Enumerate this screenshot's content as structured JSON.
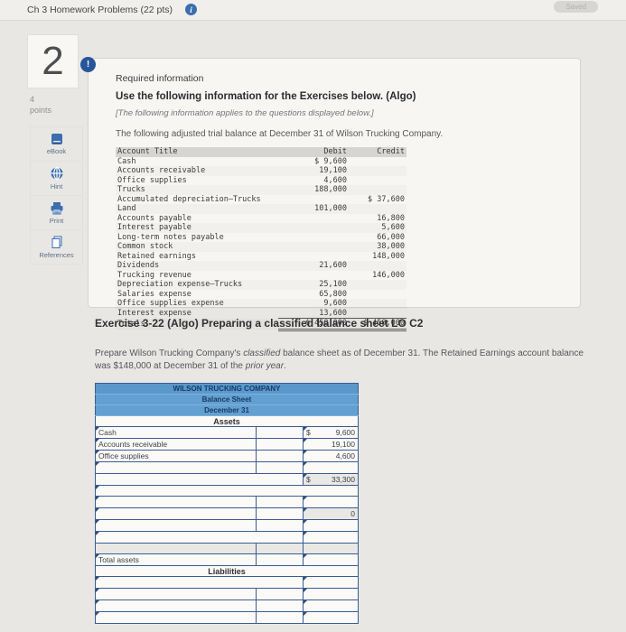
{
  "colors": {
    "accent_blue": "#3c6eae",
    "badge_navy": "#27559a",
    "bs_header_blue": "#63a0d2",
    "bs_border_navy": "#3c5d92",
    "calc_cell_bg": "#e9e8e5",
    "page_bg": "#e8e7e4"
  },
  "topbar": {
    "title": "Ch 3 Homework Problems (22 pts)",
    "info_icon_glyph": "i",
    "saved_label": "Saved"
  },
  "question": {
    "number": "2",
    "points_value": "4",
    "points_label": "points"
  },
  "sidebar": {
    "items": [
      {
        "label": "eBook",
        "icon": "ebook-icon"
      },
      {
        "label": "Hint",
        "icon": "hint-icon"
      },
      {
        "label": "Print",
        "icon": "print-icon"
      },
      {
        "label": "References",
        "icon": "references-icon"
      }
    ]
  },
  "required_info": {
    "badge_glyph": "!",
    "heading": "Required information",
    "subheading": "Use the following information for the Exercises below. (Algo)",
    "note": "[The following information applies to the questions displayed below.]",
    "intro": "The following adjusted trial balance at December 31 of Wilson Trucking Company."
  },
  "trial_balance": {
    "headers": {
      "account": "Account Title",
      "debit": "Debit",
      "credit": "Credit"
    },
    "rows": [
      {
        "account": "Cash",
        "debit": "$ 9,600",
        "credit": ""
      },
      {
        "account": "Accounts receivable",
        "debit": "19,100",
        "credit": ""
      },
      {
        "account": "Office supplies",
        "debit": "4,600",
        "credit": ""
      },
      {
        "account": "Trucks",
        "debit": "188,000",
        "credit": ""
      },
      {
        "account": "Accumulated depreciation–Trucks",
        "debit": "",
        "credit": "$ 37,600"
      },
      {
        "account": "Land",
        "debit": "101,000",
        "credit": ""
      },
      {
        "account": "Accounts payable",
        "debit": "",
        "credit": "16,800"
      },
      {
        "account": "Interest payable",
        "debit": "",
        "credit": "5,600"
      },
      {
        "account": "Long-term notes payable",
        "debit": "",
        "credit": "66,000"
      },
      {
        "account": "Common stock",
        "debit": "",
        "credit": "38,000"
      },
      {
        "account": "Retained earnings",
        "debit": "",
        "credit": "148,000"
      },
      {
        "account": "Dividends",
        "debit": "21,600",
        "credit": ""
      },
      {
        "account": "Trucking revenue",
        "debit": "",
        "credit": "146,000"
      },
      {
        "account": "Depreciation expense–Trucks",
        "debit": "25,100",
        "credit": ""
      },
      {
        "account": "Salaries expense",
        "debit": "65,800",
        "credit": ""
      },
      {
        "account": "Office supplies expense",
        "debit": "9,600",
        "credit": ""
      },
      {
        "account": "Interest expense",
        "debit": "13,600",
        "credit": ""
      },
      {
        "account": "Totals",
        "debit": "$ 458,000",
        "credit": "$ 458,000",
        "total": true
      }
    ]
  },
  "exercise": {
    "title": "Exercise 3-22 (Algo) Preparing a classified balance sheet LO C2",
    "body_parts": {
      "a": "Prepare Wilson Trucking Company's ",
      "b": "classified",
      "c": " balance sheet as of December 31. The Retained Earnings account balance was $148,000 at December 31 of the ",
      "d": "prior year",
      "e": "."
    }
  },
  "balance_sheet": {
    "title_rows": [
      "WILSON TRUCKING COMPANY",
      "Balance Sheet",
      "December 31"
    ],
    "rows": [
      {
        "type": "section",
        "label": "Assets"
      },
      {
        "type": "item",
        "label": "Cash",
        "dollar": "$",
        "amount": "9,600",
        "calc": false
      },
      {
        "type": "item",
        "label": "Accounts receivable",
        "dollar": "",
        "amount": "19,100",
        "calc": false
      },
      {
        "type": "item",
        "label": "Office supplies",
        "dollar": "",
        "amount": "4,600",
        "calc": false
      },
      {
        "type": "item",
        "label": "",
        "dollar": "",
        "amount": "",
        "calc": false
      },
      {
        "type": "subtotal",
        "label": "",
        "dollar": "$",
        "amount": "33,300"
      },
      {
        "type": "spacer"
      },
      {
        "type": "item",
        "label": "",
        "dollar": "",
        "amount": "",
        "calc": false
      },
      {
        "type": "item",
        "label": "",
        "dollar": "",
        "amount": "0",
        "calc": true
      },
      {
        "type": "item",
        "label": "",
        "dollar": "",
        "amount": "",
        "calc": false
      },
      {
        "type": "wide"
      },
      {
        "type": "calcband"
      },
      {
        "type": "item",
        "label": "Total assets",
        "dollar": "",
        "amount": "",
        "calc": false
      },
      {
        "type": "section",
        "label": "Liabilities"
      },
      {
        "type": "wide"
      },
      {
        "type": "item",
        "label": "",
        "dollar": "",
        "amount": "",
        "calc": false
      },
      {
        "type": "item",
        "label": "",
        "dollar": "",
        "amount": "",
        "calc": false
      },
      {
        "type": "item",
        "label": "",
        "dollar": "",
        "amount": "",
        "calc": false
      }
    ]
  }
}
